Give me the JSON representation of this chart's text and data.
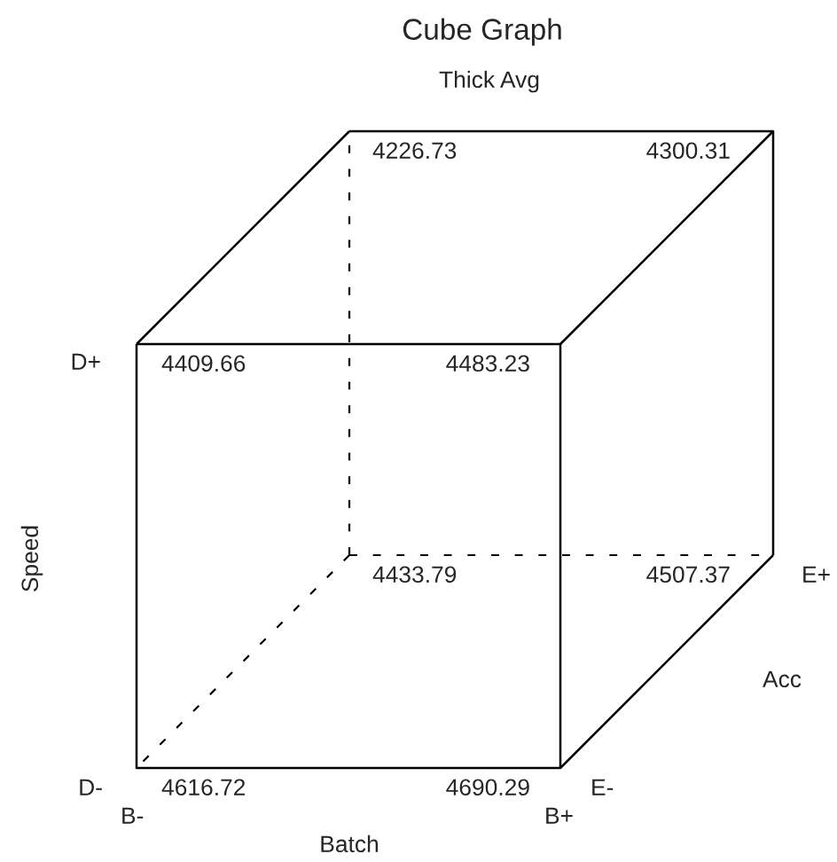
{
  "chart_data": {
    "type": "other",
    "title": "Cube Graph",
    "subtitle": "Thick Avg",
    "xlabel": "Batch",
    "ylabel": "Speed",
    "values": [
      4226.73,
      4300.31,
      4409.66,
      4483.23,
      4433.79,
      4507.37,
      4616.72,
      4690.29
    ],
    "data_labels": true,
    "annotations": [
      "D+",
      "D-",
      "B-",
      "B+",
      "E-",
      "E+",
      "Acc"
    ]
  }
}
